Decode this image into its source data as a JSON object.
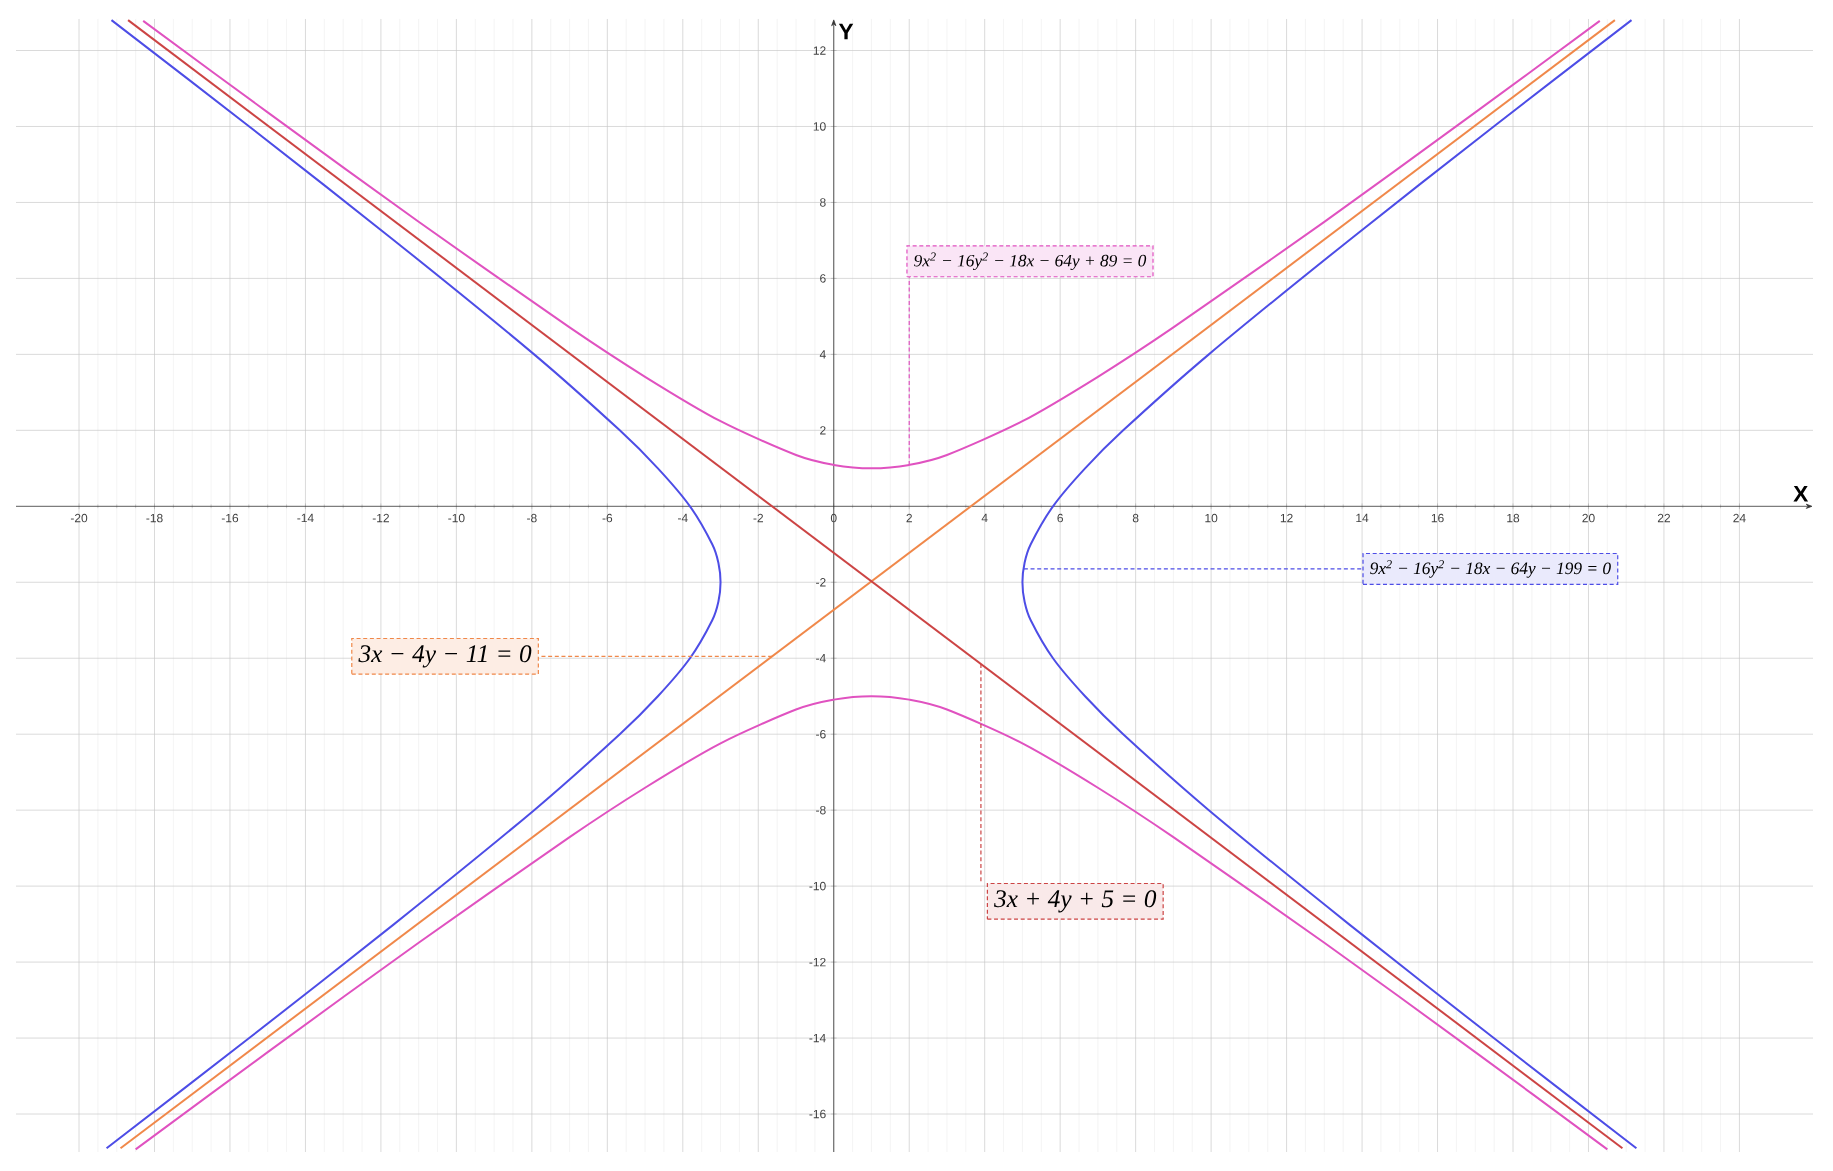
{
  "chart_data": {
    "type": "line",
    "xlabel": "X",
    "ylabel": "Y",
    "xlim": [
      -21.67,
      25.95
    ],
    "ylim": [
      -17,
      12.83
    ],
    "xticks": [
      -20,
      -18,
      -16,
      -14,
      -12,
      -10,
      -8,
      -6,
      -4,
      -2,
      0,
      2,
      4,
      6,
      8,
      10,
      12,
      14,
      16,
      18,
      20,
      22,
      24
    ],
    "yticks": [
      -16,
      -14,
      -12,
      -10,
      -8,
      -6,
      -4,
      -2,
      2,
      4,
      6,
      8,
      10,
      12
    ],
    "grid": true,
    "marker": "none",
    "series": [
      {
        "name": "9x$^{2}$ − 16y$^{2}$ − 18x − 64y − 199 = 0",
        "color": "#4d4de6",
        "x": [
          21.27,
          17.49,
          13.65,
          9.94,
          7.67,
          6.66,
          5.81,
          5.22,
          5.055,
          5,
          5.055,
          5.22,
          5.81,
          6.66,
          7.67,
          9.94,
          13.65,
          17.49,
          21.14,
          null,
          -19.27,
          -15.49,
          -11.65,
          -7.94,
          -5.67,
          -4.66,
          -3.81,
          -3.22,
          -3.055,
          -3,
          -3.055,
          -3.22,
          -3.81,
          -4.66,
          -5.67,
          -7.94,
          -11.65,
          -15.49,
          -19.14
        ],
        "values": [
          -16.9,
          -14,
          -11,
          -8,
          -6,
          -5,
          -4,
          -3,
          -2.5,
          -2,
          -1.5,
          -1,
          0,
          1,
          2,
          4,
          7,
          10,
          12.8,
          null,
          -16.9,
          -14,
          -11,
          -8,
          -6,
          -5,
          -4,
          -3,
          -2.5,
          -2,
          -1.5,
          -1,
          0,
          1,
          2,
          4,
          7,
          10,
          12.8
        ]
      },
      {
        "name": "9x$^{2}$ − 16y$^{2}$ − 18x − 64y + 89 = 0",
        "color": "#e052c0",
        "x": [
          -18.3,
          -15,
          -11,
          -7,
          -5,
          -3,
          -1,
          0,
          1,
          2,
          3,
          5,
          7,
          9,
          13,
          17,
          20.3,
          null,
          -18.5,
          -15,
          -11,
          -7,
          -5,
          -3,
          -1,
          0,
          1,
          2,
          3,
          5,
          7,
          9,
          13,
          17,
          20.5
        ],
        "values": [
          12.78,
          10.37,
          7.49,
          4.71,
          3.41,
          2.24,
          1.35,
          1.09,
          1,
          1.09,
          1.35,
          2.24,
          3.41,
          4.71,
          7.49,
          10.37,
          12.78,
          null,
          -16.93,
          -14.37,
          -11.49,
          -8.71,
          -7.41,
          -6.24,
          -5.35,
          -5.09,
          -5,
          -5.09,
          -5.35,
          -6.24,
          -7.41,
          -8.71,
          -11.49,
          -14.37,
          -16.93
        ]
      },
      {
        "name": "3x − 4y − 11 = 0",
        "color": "#f0884a",
        "x": [
          -18.9,
          20.7
        ],
        "values": [
          -16.9,
          12.8
        ]
      },
      {
        "name": "3x + 4y + 5 = 0",
        "color": "#cc4444",
        "x": [
          -18.7,
          20.9
        ],
        "values": [
          12.8,
          -16.9
        ]
      }
    ]
  }
}
